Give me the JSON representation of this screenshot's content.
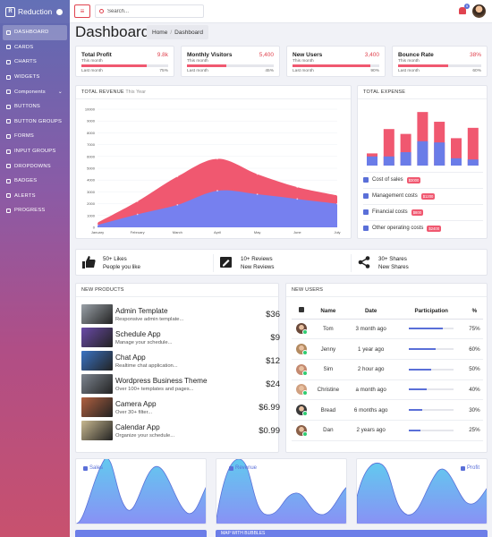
{
  "brand": {
    "name": "Reduction"
  },
  "sidebar": {
    "items": [
      {
        "label": "DASHBOARD",
        "active": true
      },
      {
        "label": "CARDS"
      },
      {
        "label": "CHARTS"
      },
      {
        "label": "WIDGETS"
      },
      {
        "label": "Components",
        "caret": "⌄"
      },
      {
        "label": "BUTTONS"
      },
      {
        "label": "BUTTON GROUPS"
      },
      {
        "label": "FORMS"
      },
      {
        "label": "INPUT GROUPS"
      },
      {
        "label": "DROPDOWNS"
      },
      {
        "label": "BADGES"
      },
      {
        "label": "ALERTS"
      },
      {
        "label": "PROGRESS"
      }
    ]
  },
  "header": {
    "search_placeholder": "Search...",
    "notification_count": "5"
  },
  "page": {
    "title": "Dashboard",
    "breadcrumb": [
      "Home",
      "/",
      "Dashboard"
    ]
  },
  "stats": [
    {
      "title": "Total Profit",
      "value": "9.8k",
      "subtitle": "This month",
      "progress": 75,
      "left_label": "Last month",
      "right_label": "75%"
    },
    {
      "title": "Monthly Visitors",
      "value": "5,400",
      "subtitle": "This month",
      "progress": 45,
      "left_label": "Last month",
      "right_label": "45%"
    },
    {
      "title": "New Users",
      "value": "3,400",
      "subtitle": "This month",
      "progress": 90,
      "left_label": "Last month",
      "right_label": "90%"
    },
    {
      "title": "Bounce Rate",
      "value": "38%",
      "subtitle": "This month",
      "progress": 60,
      "left_label": "Last month",
      "right_label": "60%"
    }
  ],
  "revenue": {
    "title": "TOTAL REVENUE",
    "subtitle": "This Year"
  },
  "expense": {
    "title": "TOTAL EXPENSE",
    "items": [
      {
        "label": "Cost of sales",
        "pill": "$3000",
        "icon": "dollar-icon"
      },
      {
        "label": "Management costs",
        "pill": "$1200",
        "icon": "users-icon"
      },
      {
        "label": "Financial costs",
        "pill": "$800",
        "icon": "trend-icon"
      },
      {
        "label": "Other operating costs",
        "pill": "$2400",
        "icon": "pie-icon"
      }
    ]
  },
  "info": [
    {
      "line1": "50+ Likes",
      "line2": "People you like",
      "icon": "thumbs-up-icon"
    },
    {
      "line1": "10+ Reviews",
      "line2": "New Reviews",
      "icon": "edit-icon"
    },
    {
      "line1": "30+ Shares",
      "line2": "New Shares",
      "icon": "share-icon"
    }
  ],
  "products": {
    "title": "NEW PRODUCTS",
    "items": [
      {
        "name": "Admin Template",
        "desc": "Responsive admin template...",
        "price": "$36",
        "thumb": "#9aa1a8"
      },
      {
        "name": "Schedule App",
        "desc": "Manage your schedule...",
        "price": "$9",
        "thumb": "#6a4aa8"
      },
      {
        "name": "Chat App",
        "desc": "Realtime chat application...",
        "price": "$12",
        "thumb": "#3a73c4"
      },
      {
        "name": "Wordpress Business Theme",
        "desc": "Over 100+ templates and pages...",
        "price": "$24",
        "thumb": "#7d8590"
      },
      {
        "name": "Camera App",
        "desc": "Over 30+ filter...",
        "price": "$6.99",
        "thumb": "#b06040"
      },
      {
        "name": "Calendar App",
        "desc": "Organize your schedule...",
        "price": "$0.99",
        "thumb": "#c8b890"
      }
    ]
  },
  "users": {
    "title": "NEW USERS",
    "columns": [
      "Name",
      "Date",
      "Participation",
      "%"
    ],
    "rows": [
      {
        "name": "Tom",
        "date": "3 month ago",
        "pct": "75%",
        "value": 75,
        "avatar": "#6b4a3a"
      },
      {
        "name": "Jenny",
        "date": "1 year ago",
        "pct": "60%",
        "value": 60,
        "avatar": "#b38a60"
      },
      {
        "name": "Sim",
        "date": "2 hour ago",
        "pct": "50%",
        "value": 50,
        "avatar": "#c48a70"
      },
      {
        "name": "Christine",
        "date": "a month ago",
        "pct": "40%",
        "value": 40,
        "avatar": "#d0a080"
      },
      {
        "name": "Bread",
        "date": "6 months ago",
        "pct": "30%",
        "value": 30,
        "avatar": "#3a3a3a"
      },
      {
        "name": "Dan",
        "date": "2 years ago",
        "pct": "25%",
        "value": 25,
        "avatar": "#8a6048"
      }
    ]
  },
  "waves": [
    {
      "label": "Sales"
    },
    {
      "label": "Revenue"
    },
    {
      "label": "Profit"
    }
  ],
  "bottom": {
    "title": "MAP WITH BUBBLES"
  },
  "chart_data": [
    {
      "type": "area",
      "title": "TOTAL REVENUE",
      "categories": [
        "January",
        "February",
        "March",
        "April",
        "May",
        "June",
        "July"
      ],
      "ylim": [
        0,
        10000
      ],
      "yticks": [
        0,
        1000,
        2000,
        3000,
        4000,
        5000,
        6000,
        7000,
        8000,
        9000,
        10000
      ],
      "series": [
        {
          "values": [
            400,
            2200,
            4300,
            5800,
            4500,
            3400,
            2700
          ],
          "color": "#f05870"
        },
        {
          "values": [
            200,
            1100,
            1900,
            3100,
            2800,
            2400,
            2000
          ],
          "color": "#7680ef"
        }
      ]
    },
    {
      "type": "bar",
      "title": "TOTAL EXPENSE",
      "ylim": [
        0,
        100
      ],
      "series": [
        {
          "values": [
            15,
            15,
            22,
            40,
            38,
            12,
            10
          ],
          "color": "#6a7ce8"
        },
        {
          "values": [
            20,
            60,
            52,
            88,
            72,
            45,
            62
          ],
          "color": "#f05870"
        }
      ]
    }
  ]
}
